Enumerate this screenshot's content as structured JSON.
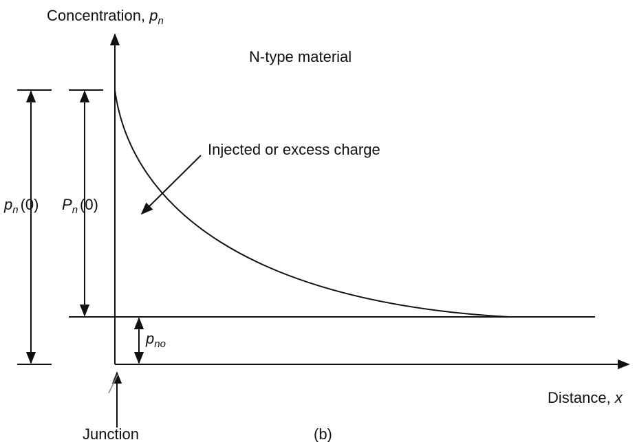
{
  "y_axis_label": {
    "text": "Concentration,",
    "symbol": "p",
    "subscript": "n"
  },
  "title": "N-type material",
  "annotation": "Injected or excess charge",
  "left_dimension": {
    "symbol": "p",
    "subscript": "n",
    "argument": "(0)"
  },
  "inner_dimension": {
    "symbol": "P",
    "subscript": "n",
    "argument": "(0)"
  },
  "baseline_dimension": {
    "symbol": "p",
    "subscript": "no"
  },
  "x_axis_label": {
    "text": "Distance,",
    "symbol": "x"
  },
  "junction_label": "Junction",
  "caption": "(b)"
}
